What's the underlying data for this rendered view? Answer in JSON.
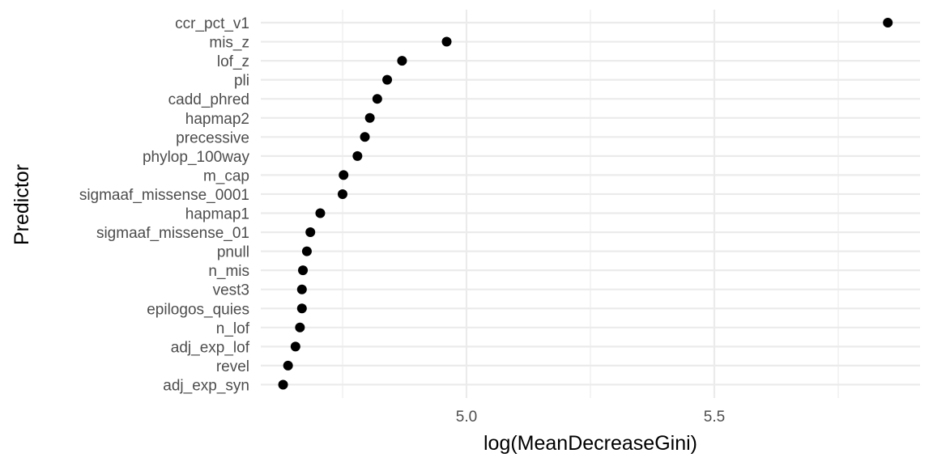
{
  "chart_data": {
    "type": "scatter",
    "title": "",
    "xlabel": "log(MeanDecreaseGini)",
    "ylabel": "Predictor",
    "xlim": [
      4.585,
      5.915
    ],
    "x_ticks": [
      "5.0",
      "5.5"
    ],
    "x_tick_values": [
      5.0,
      5.5
    ],
    "x_minor_ticks": [
      4.75,
      5.25,
      5.75
    ],
    "grid": true,
    "point_color": "#000000",
    "grid_color": "#ebebeb",
    "categories": [
      "ccr_pct_v1",
      "mis_z",
      "lof_z",
      "pli",
      "cadd_phred",
      "hapmap2",
      "precessive",
      "phylop_100way",
      "m_cap",
      "sigmaaf_missense_0001",
      "hapmap1",
      "sigmaaf_missense_01",
      "pnull",
      "n_mis",
      "vest3",
      "epilogos_quies",
      "n_lof",
      "adj_exp_lof",
      "revel",
      "adj_exp_syn"
    ],
    "values": [
      5.85,
      4.96,
      4.87,
      4.84,
      4.82,
      4.805,
      4.795,
      4.78,
      4.752,
      4.75,
      4.705,
      4.685,
      4.678,
      4.67,
      4.668,
      4.668,
      4.664,
      4.655,
      4.64,
      4.63
    ]
  }
}
